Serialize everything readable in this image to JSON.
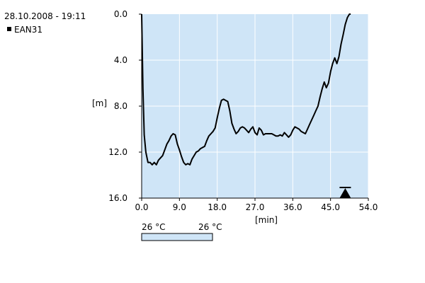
{
  "header": {
    "datetime": "28.10.2008 - 19:11",
    "legend_label": "EAN31"
  },
  "colors": {
    "plot_background": "#cfe5f7",
    "grid": "#ffffff",
    "line": "#000000"
  },
  "temperature_bar": {
    "left_label": "26 °C",
    "right_label": "26 °C",
    "fill": "#cfe5f7"
  },
  "chart_data": {
    "type": "line",
    "xlabel": "[min]",
    "ylabel": "[m]",
    "xlim": [
      0,
      54
    ],
    "ylim": [
      0,
      16
    ],
    "y_inverted": true,
    "grid": true,
    "x_ticks": [
      0,
      9,
      18,
      27,
      36,
      45,
      54
    ],
    "x_tick_labels": [
      "0.0",
      "9.0",
      "18.0",
      "27.0",
      "36.0",
      "45.0",
      "54.0"
    ],
    "y_ticks": [
      0,
      4,
      8,
      12,
      16
    ],
    "y_tick_labels": [
      "0.0",
      "4.0",
      "8.0",
      "12.0",
      "16.0"
    ],
    "series": [
      {
        "x": [
          0,
          0.3,
          0.6,
          1.0,
          1.5,
          2.0,
          2.5,
          3.0,
          3.5,
          4.0,
          4.5,
          5.0,
          5.5,
          6.0,
          6.5,
          7.0,
          7.5,
          8.0,
          8.5,
          9.0,
          9.5,
          10.0,
          10.5,
          11.0,
          11.5,
          12.0,
          12.5,
          13.0,
          13.5,
          14.0,
          14.5,
          15.0,
          15.5,
          16.0,
          16.5,
          17.0,
          17.5,
          18.0,
          18.5,
          19.0,
          19.5,
          20.0,
          20.5,
          21.0,
          21.5,
          22.0,
          22.5,
          23.0,
          23.5,
          24.0,
          24.5,
          25.0,
          25.5,
          26.0,
          26.5,
          27.0,
          27.5,
          28.0,
          28.5,
          29.0,
          29.5,
          30.0,
          30.5,
          31.0,
          31.5,
          32.0,
          32.5,
          33.0,
          33.5,
          34.0,
          34.5,
          35.0,
          35.5,
          36.0,
          36.5,
          37.0,
          37.5,
          38.0,
          38.5,
          39.0,
          39.5,
          40.0,
          40.5,
          41.0,
          41.5,
          42.0,
          42.5,
          43.0,
          43.5,
          44.0,
          44.5,
          45.0,
          45.5,
          46.0,
          46.5,
          47.0,
          47.5,
          48.0,
          48.5,
          49.0,
          49.5,
          49.8
        ],
        "y": [
          0,
          6.5,
          10.5,
          12.0,
          12.9,
          12.9,
          13.1,
          12.9,
          13.1,
          12.7,
          12.5,
          12.3,
          11.8,
          11.3,
          11.0,
          10.6,
          10.4,
          10.5,
          11.3,
          11.8,
          12.4,
          12.9,
          13.1,
          13.0,
          13.1,
          12.6,
          12.3,
          12.0,
          11.9,
          11.7,
          11.6,
          11.5,
          11.0,
          10.6,
          10.4,
          10.2,
          9.9,
          9.0,
          8.2,
          7.5,
          7.4,
          7.5,
          7.6,
          8.4,
          9.5,
          10.0,
          10.4,
          10.2,
          9.9,
          9.8,
          9.9,
          10.1,
          10.3,
          10.0,
          9.8,
          10.3,
          10.5,
          9.9,
          10.1,
          10.5,
          10.4,
          10.4,
          10.4,
          10.4,
          10.5,
          10.6,
          10.6,
          10.5,
          10.6,
          10.3,
          10.5,
          10.7,
          10.5,
          10.1,
          9.8,
          9.9,
          10.0,
          10.2,
          10.3,
          10.4,
          10.0,
          9.6,
          9.2,
          8.8,
          8.4,
          8.0,
          7.2,
          6.5,
          5.9,
          6.4,
          6.0,
          5.0,
          4.3,
          3.8,
          4.3,
          3.7,
          2.6,
          1.8,
          0.9,
          0.3,
          0,
          0
        ],
        "color": "#000000"
      }
    ],
    "annotations": [
      {
        "kind": "triangle-marker",
        "x": 48.5,
        "y": 16
      }
    ]
  }
}
